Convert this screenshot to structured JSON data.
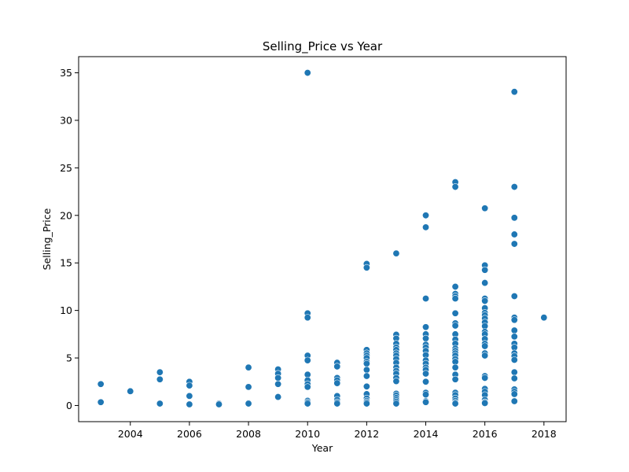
{
  "chart_data": {
    "type": "scatter",
    "title": "Selling_Price vs Year",
    "xlabel": "Year",
    "ylabel": "Selling_Price",
    "xlim": [
      2002.25,
      2018.75
    ],
    "ylim": [
      -1.7,
      36.7
    ],
    "xticks": [
      2004,
      2006,
      2008,
      2010,
      2012,
      2014,
      2016,
      2018
    ],
    "yticks": [
      0,
      5,
      10,
      15,
      20,
      25,
      30,
      35
    ],
    "grid": false,
    "legend": "none",
    "marker_color": "#1f77b4",
    "series": [
      {
        "points": [
          [
            2003,
            2.25
          ],
          [
            2003,
            0.35
          ],
          [
            2004,
            1.5
          ],
          [
            2005,
            3.5
          ],
          [
            2005,
            2.75
          ],
          [
            2005,
            0.2
          ],
          [
            2006,
            2.5
          ],
          [
            2006,
            2.1
          ],
          [
            2006,
            1.0
          ],
          [
            2006,
            0.12
          ],
          [
            2007,
            0.2
          ],
          [
            2007,
            0.12
          ],
          [
            2008,
            4.0
          ],
          [
            2008,
            1.95
          ],
          [
            2008,
            0.25
          ],
          [
            2008,
            0.2
          ],
          [
            2009,
            3.8
          ],
          [
            2009,
            3.35
          ],
          [
            2009,
            2.9
          ],
          [
            2009,
            2.25
          ],
          [
            2009,
            0.9
          ],
          [
            2010,
            35.0
          ],
          [
            2010,
            9.7
          ],
          [
            2010,
            9.25
          ],
          [
            2010,
            5.25
          ],
          [
            2010,
            4.75
          ],
          [
            2010,
            3.25
          ],
          [
            2010,
            2.65
          ],
          [
            2010,
            2.25
          ],
          [
            2010,
            1.95
          ],
          [
            2010,
            0.5
          ],
          [
            2010,
            0.35
          ],
          [
            2010,
            0.2
          ],
          [
            2011,
            4.5
          ],
          [
            2011,
            4.1
          ],
          [
            2011,
            2.9
          ],
          [
            2011,
            2.65
          ],
          [
            2011,
            2.35
          ],
          [
            2011,
            1.0
          ],
          [
            2011,
            0.6
          ],
          [
            2011,
            0.35
          ],
          [
            2011,
            0.2
          ],
          [
            2012,
            14.9
          ],
          [
            2012,
            14.5
          ],
          [
            2012,
            5.85
          ],
          [
            2012,
            5.5
          ],
          [
            2012,
            5.25
          ],
          [
            2012,
            5.0
          ],
          [
            2012,
            4.6
          ],
          [
            2012,
            4.4
          ],
          [
            2012,
            3.75
          ],
          [
            2012,
            3.1
          ],
          [
            2012,
            2.0
          ],
          [
            2012,
            1.2
          ],
          [
            2012,
            0.75
          ],
          [
            2012,
            0.5
          ],
          [
            2012,
            0.35
          ],
          [
            2012,
            0.2
          ],
          [
            2013,
            16.0
          ],
          [
            2013,
            7.45
          ],
          [
            2013,
            7.05
          ],
          [
            2013,
            6.5
          ],
          [
            2013,
            6.1
          ],
          [
            2013,
            5.85
          ],
          [
            2013,
            5.5
          ],
          [
            2013,
            5.25
          ],
          [
            2013,
            4.9
          ],
          [
            2013,
            4.5
          ],
          [
            2013,
            4.0
          ],
          [
            2013,
            3.65
          ],
          [
            2013,
            3.35
          ],
          [
            2013,
            2.9
          ],
          [
            2013,
            2.55
          ],
          [
            2013,
            1.25
          ],
          [
            2013,
            1.05
          ],
          [
            2013,
            0.8
          ],
          [
            2013,
            0.6
          ],
          [
            2013,
            0.4
          ],
          [
            2013,
            0.2
          ],
          [
            2014,
            20.0
          ],
          [
            2014,
            18.75
          ],
          [
            2014,
            11.25
          ],
          [
            2014,
            8.25
          ],
          [
            2014,
            7.5
          ],
          [
            2014,
            7.05
          ],
          [
            2014,
            6.4
          ],
          [
            2014,
            6.1
          ],
          [
            2014,
            5.75
          ],
          [
            2014,
            5.3
          ],
          [
            2014,
            4.75
          ],
          [
            2014,
            4.4
          ],
          [
            2014,
            4.0
          ],
          [
            2014,
            3.75
          ],
          [
            2014,
            3.35
          ],
          [
            2014,
            2.5
          ],
          [
            2014,
            1.35
          ],
          [
            2014,
            1.15
          ],
          [
            2014,
            0.45
          ],
          [
            2014,
            0.35
          ],
          [
            2015,
            23.5
          ],
          [
            2015,
            23.0
          ],
          [
            2015,
            12.5
          ],
          [
            2015,
            11.75
          ],
          [
            2015,
            11.5
          ],
          [
            2015,
            11.25
          ],
          [
            2015,
            9.7
          ],
          [
            2015,
            8.65
          ],
          [
            2015,
            8.4
          ],
          [
            2015,
            7.5
          ],
          [
            2015,
            6.95
          ],
          [
            2015,
            6.5
          ],
          [
            2015,
            6.0
          ],
          [
            2015,
            5.75
          ],
          [
            2015,
            5.5
          ],
          [
            2015,
            5.25
          ],
          [
            2015,
            4.9
          ],
          [
            2015,
            4.6
          ],
          [
            2015,
            4.0
          ],
          [
            2015,
            3.25
          ],
          [
            2015,
            2.75
          ],
          [
            2015,
            1.35
          ],
          [
            2015,
            1.1
          ],
          [
            2015,
            0.75
          ],
          [
            2015,
            0.5
          ],
          [
            2015,
            0.3
          ],
          [
            2015,
            0.2
          ],
          [
            2016,
            20.75
          ],
          [
            2016,
            14.75
          ],
          [
            2016,
            14.25
          ],
          [
            2016,
            12.9
          ],
          [
            2016,
            11.25
          ],
          [
            2016,
            11.0
          ],
          [
            2016,
            10.25
          ],
          [
            2016,
            9.75
          ],
          [
            2016,
            9.5
          ],
          [
            2016,
            9.15
          ],
          [
            2016,
            8.75
          ],
          [
            2016,
            8.35
          ],
          [
            2016,
            7.75
          ],
          [
            2016,
            7.5
          ],
          [
            2016,
            7.0
          ],
          [
            2016,
            6.5
          ],
          [
            2016,
            6.25
          ],
          [
            2016,
            5.5
          ],
          [
            2016,
            5.25
          ],
          [
            2016,
            3.1
          ],
          [
            2016,
            2.9
          ],
          [
            2016,
            1.75
          ],
          [
            2016,
            1.45
          ],
          [
            2016,
            1.1
          ],
          [
            2016,
            0.6
          ],
          [
            2016,
            0.35
          ],
          [
            2016,
            0.25
          ],
          [
            2017,
            33.0
          ],
          [
            2017,
            23.0
          ],
          [
            2017,
            19.75
          ],
          [
            2017,
            18.0
          ],
          [
            2017,
            17.0
          ],
          [
            2017,
            11.5
          ],
          [
            2017,
            9.25
          ],
          [
            2017,
            9.0
          ],
          [
            2017,
            7.9
          ],
          [
            2017,
            7.25
          ],
          [
            2017,
            6.5
          ],
          [
            2017,
            6.1
          ],
          [
            2017,
            5.5
          ],
          [
            2017,
            5.2
          ],
          [
            2017,
            4.8
          ],
          [
            2017,
            3.5
          ],
          [
            2017,
            2.85
          ],
          [
            2017,
            1.7
          ],
          [
            2017,
            1.45
          ],
          [
            2017,
            1.2
          ],
          [
            2017,
            0.45
          ],
          [
            2018,
            9.25
          ]
        ]
      }
    ]
  }
}
